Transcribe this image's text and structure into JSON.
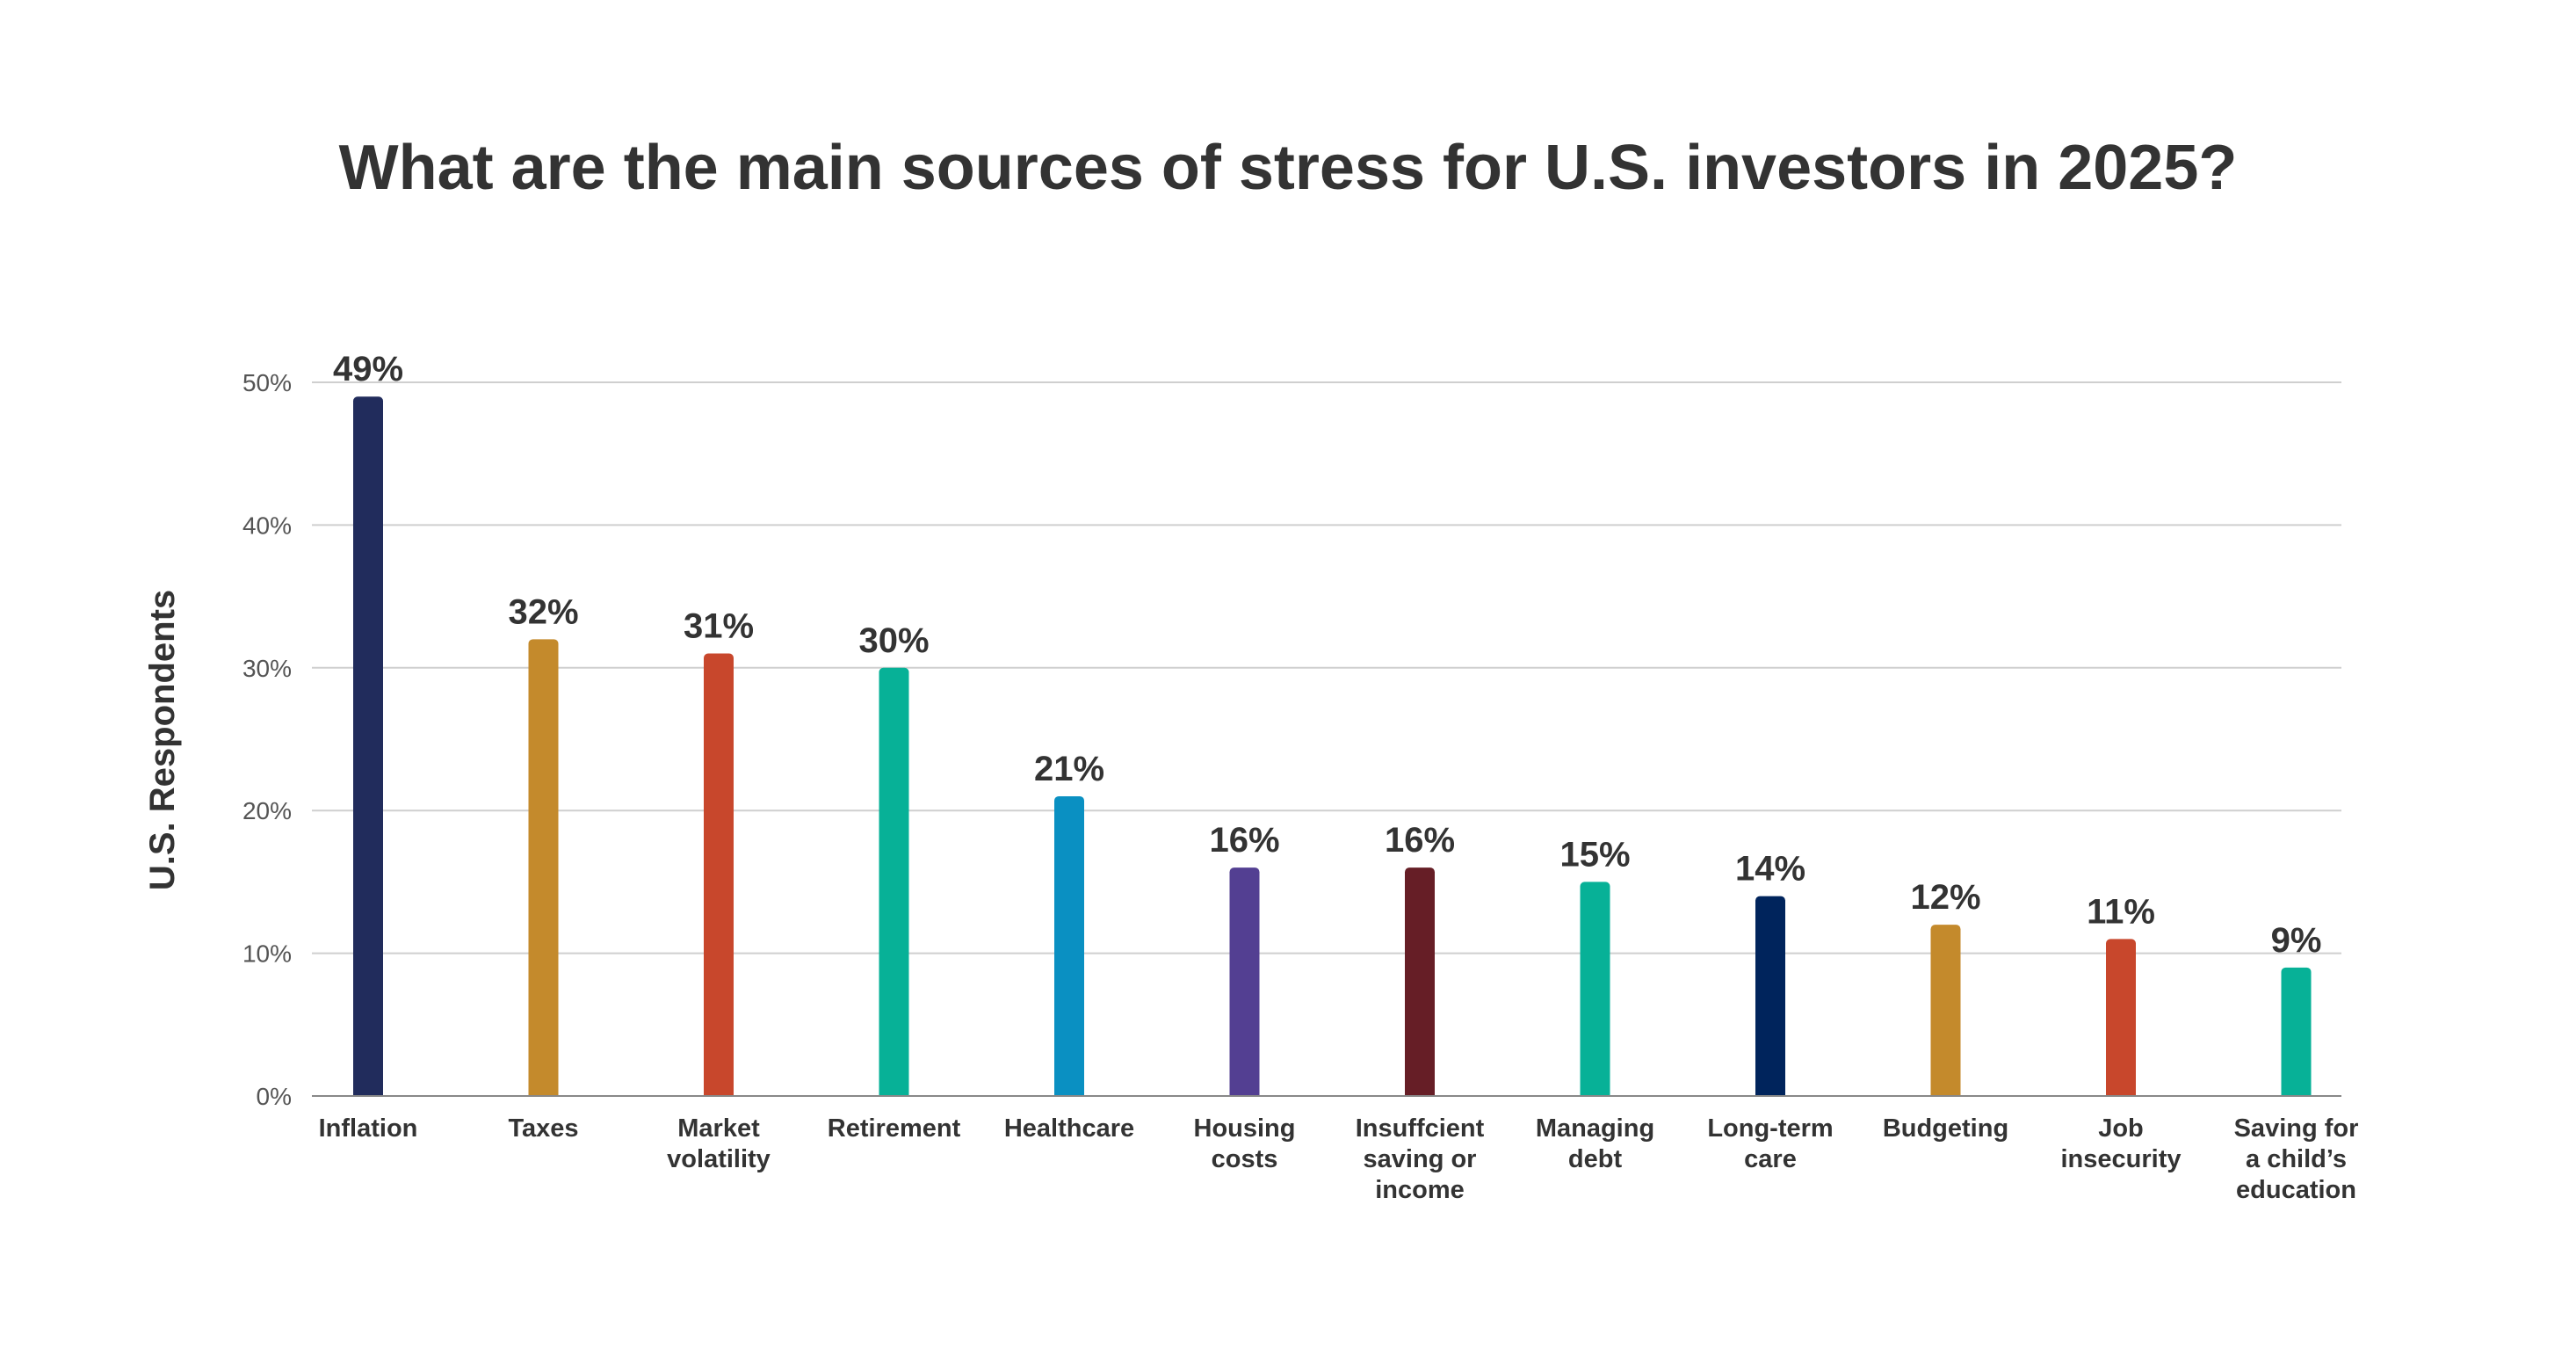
{
  "chart_data": {
    "type": "bar",
    "title": "What are the main sources of stress for U.S. investors in 2025?",
    "ylabel": "U.S. Respondents",
    "xlabel": "",
    "ylim": [
      0,
      50
    ],
    "yticks": [
      "0%",
      "10%",
      "20%",
      "30%",
      "40%",
      "50%"
    ],
    "grid": true,
    "categories": [
      [
        "Inflation"
      ],
      [
        "Taxes"
      ],
      [
        "Market",
        "volatility"
      ],
      [
        "Retirement"
      ],
      [
        "Healthcare"
      ],
      [
        "Housing",
        "costs"
      ],
      [
        "Insuffcient",
        "saving or",
        "income"
      ],
      [
        "Managing",
        "debt"
      ],
      [
        "Long-term",
        "care"
      ],
      [
        "Budgeting"
      ],
      [
        "Job",
        "insecurity"
      ],
      [
        "Saving for",
        "a child’s",
        "education"
      ]
    ],
    "values": [
      49,
      32,
      31,
      30,
      21,
      16,
      16,
      15,
      14,
      12,
      11,
      9
    ],
    "value_labels": [
      "49%",
      "32%",
      "31%",
      "30%",
      "21%",
      "16%",
      "16%",
      "15%",
      "14%",
      "12%",
      "11%",
      "9%"
    ],
    "colors": [
      "#212c5c",
      "#c48a2c",
      "#c8472c",
      "#07b197",
      "#0a90c2",
      "#533f92",
      "#661e26",
      "#07b197",
      "#00245c",
      "#c48a2c",
      "#c8472c",
      "#07b197"
    ]
  }
}
